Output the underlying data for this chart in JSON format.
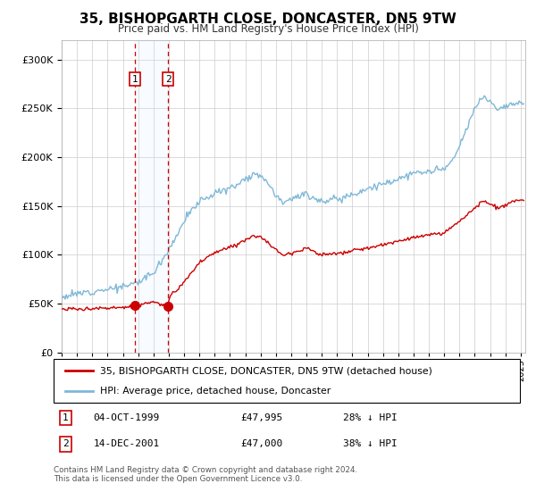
{
  "title": "35, BISHOPGARTH CLOSE, DONCASTER, DN5 9TW",
  "subtitle": "Price paid vs. HM Land Registry's House Price Index (HPI)",
  "ytick_values": [
    0,
    50000,
    100000,
    150000,
    200000,
    250000,
    300000
  ],
  "ylim": [
    0,
    320000
  ],
  "sale1_date_num": 1999.78,
  "sale1_price": 47995,
  "sale2_date_num": 2001.95,
  "sale2_price": 47000,
  "hpi_color": "#7fb8d8",
  "price_color": "#cc0000",
  "vline_color": "#cc0000",
  "shade_color": "#ddeeff",
  "marker_color": "#cc0000",
  "legend_label_price": "35, BISHOPGARTH CLOSE, DONCASTER, DN5 9TW (detached house)",
  "legend_label_hpi": "HPI: Average price, detached house, Doncaster",
  "footnote": "Contains HM Land Registry data © Crown copyright and database right 2024.\nThis data is licensed under the Open Government Licence v3.0.",
  "xlim_start": 1995.0,
  "xlim_end": 2025.3
}
